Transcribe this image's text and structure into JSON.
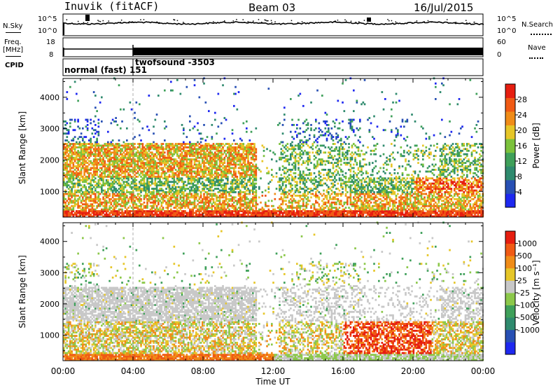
{
  "header": {
    "title": "Inuvik (fitACF)",
    "beam": "Beam 03",
    "date": "16/Jul/2015"
  },
  "noise_panel": {
    "left_label": "N.Sky",
    "right_label": "N.Search",
    "left_ticks": [
      "10^5",
      "10^0"
    ],
    "right_ticks": [
      "10^5",
      "10^0"
    ]
  },
  "freq_panel": {
    "left_label": "Freq.",
    "left_unit": "[MHz]",
    "right_label": "Nave",
    "left_ticks": [
      "18",
      "8"
    ],
    "right_ticks": [
      "60",
      "0"
    ]
  },
  "cpid_panel": {
    "label": "CPID",
    "mode_1": "normal (fast) 151",
    "mode_2": "twofsound -3503"
  },
  "colors": {
    "power_scale": [
      "#1e28f0",
      "#2850b4",
      "#2f8a6e",
      "#3fa05a",
      "#7cc23c",
      "#e6c628",
      "#f08c18",
      "#f05a14",
      "#e61e10"
    ],
    "velocity_scale": [
      "#1e28f0",
      "#2850b4",
      "#2f8a6e",
      "#3fa05a",
      "#8cc84a",
      "#c8c8c8",
      "#e6c628",
      "#f08c18",
      "#f05a14",
      "#e61e10"
    ]
  },
  "chart_data": [
    {
      "type": "heatmap",
      "name": "power",
      "ylabel": "Slant Range [km]",
      "yticks": [
        1000,
        2000,
        3000,
        4000
      ],
      "ylim": [
        180,
        4600
      ],
      "xlim": [
        0,
        24
      ],
      "colorbar": {
        "label": "Power [dB]",
        "ticks": [
          "4",
          "8",
          "12",
          "16",
          "20",
          "24",
          "28"
        ],
        "range": [
          0,
          32
        ]
      }
    },
    {
      "type": "heatmap",
      "name": "velocity",
      "ylabel": "Slant Range [km]",
      "yticks": [
        1000,
        2000,
        3000,
        4000
      ],
      "ylim": [
        180,
        4600
      ],
      "xlim": [
        0,
        24
      ],
      "xlabel": "Time UT",
      "xticks": [
        "00:00",
        "04:00",
        "08:00",
        "12:00",
        "16:00",
        "20:00",
        "00:00"
      ],
      "colorbar": {
        "label": "Velocity [m s⁻¹]",
        "ticks": [
          "1000",
          "500",
          "100",
          "25",
          "-25",
          "-100",
          "-500",
          "-1000"
        ]
      }
    }
  ]
}
